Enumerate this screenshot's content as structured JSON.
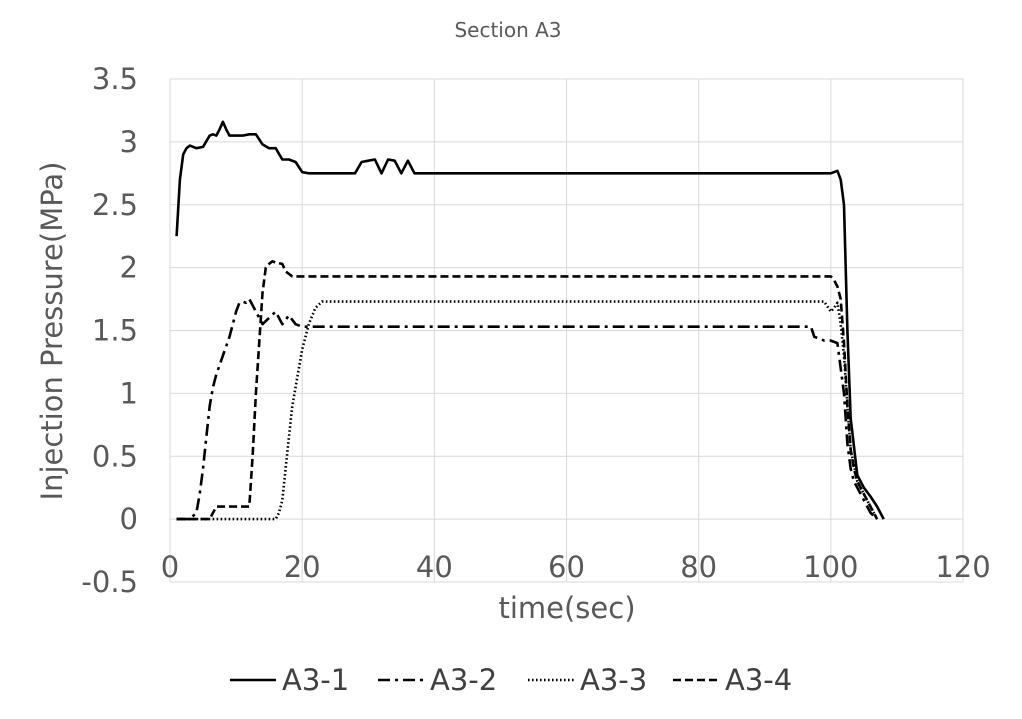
{
  "chart_data": {
    "type": "line",
    "title": "Section A3",
    "xlabel": "time(sec)",
    "ylabel": "Injection Pressure(MPa)",
    "xlim": [
      0,
      120
    ],
    "ylim": [
      -0.5,
      3.5
    ],
    "xticks": [
      0,
      20,
      40,
      60,
      80,
      100,
      120
    ],
    "yticks": [
      -0.5,
      0,
      0.5,
      1,
      1.5,
      2,
      2.5,
      3,
      3.5
    ],
    "xtick_labels": [
      "0",
      "20",
      "40",
      "60",
      "80",
      "100",
      "120"
    ],
    "ytick_labels": [
      "-0.5",
      "0",
      "0.5",
      "1",
      "1.5",
      "2",
      "2.5",
      "3",
      "3.5"
    ],
    "grid": true,
    "legend_position": "bottom",
    "series": [
      {
        "name": "A3-1",
        "line_style": "solid",
        "x": [
          1,
          1.5,
          2,
          2.5,
          3,
          4,
          5,
          6,
          6.5,
          7,
          7.5,
          8,
          8.5,
          9,
          10,
          11,
          12,
          13,
          14,
          15,
          16,
          17,
          18,
          19,
          20,
          21,
          22,
          25,
          28,
          29,
          30,
          31,
          32,
          33,
          34,
          35,
          36,
          37,
          40,
          60,
          80,
          100,
          101,
          101.5,
          102,
          102.5,
          103,
          104,
          105,
          106,
          107,
          108
        ],
        "values": [
          2.25,
          2.7,
          2.9,
          2.95,
          2.97,
          2.95,
          2.96,
          3.05,
          3.06,
          3.05,
          3.1,
          3.16,
          3.1,
          3.05,
          3.05,
          3.05,
          3.06,
          3.06,
          2.98,
          2.95,
          2.95,
          2.86,
          2.86,
          2.84,
          2.76,
          2.75,
          2.75,
          2.75,
          2.75,
          2.84,
          2.85,
          2.86,
          2.75,
          2.86,
          2.85,
          2.75,
          2.85,
          2.75,
          2.75,
          2.75,
          2.75,
          2.75,
          2.77,
          2.7,
          2.5,
          1.5,
          0.8,
          0.35,
          0.25,
          0.18,
          0.1,
          0.0
        ]
      },
      {
        "name": "A3-2",
        "line_style": "dash-dot",
        "x": [
          1,
          3,
          4,
          4.5,
          5,
          5.5,
          6,
          6.5,
          7,
          8,
          9,
          10,
          10.5,
          11,
          11.5,
          12,
          12.5,
          13,
          14,
          15,
          16,
          17,
          18,
          19,
          20,
          22,
          40,
          60,
          80,
          97,
          97.5,
          98,
          99,
          100,
          101,
          102,
          102.5,
          103,
          103.5,
          104,
          105,
          106,
          107
        ],
        "values": [
          0,
          0,
          0.05,
          0.2,
          0.4,
          0.65,
          0.9,
          1.05,
          1.15,
          1.3,
          1.45,
          1.65,
          1.72,
          1.73,
          1.72,
          1.75,
          1.7,
          1.65,
          1.55,
          1.6,
          1.65,
          1.55,
          1.62,
          1.55,
          1.53,
          1.53,
          1.53,
          1.53,
          1.53,
          1.53,
          1.45,
          1.44,
          1.42,
          1.42,
          1.4,
          1.0,
          0.6,
          0.4,
          0.3,
          0.25,
          0.15,
          0.05,
          0.0
        ]
      },
      {
        "name": "A3-3",
        "line_style": "dotted",
        "x": [
          1,
          10,
          14,
          16,
          16.5,
          17,
          17.5,
          18,
          18.5,
          19,
          19.5,
          20,
          21,
          22,
          23,
          25,
          40,
          60,
          80,
          99,
          100,
          100.5,
          101,
          101.5,
          102,
          102.5,
          103,
          104,
          105,
          106,
          107
        ],
        "values": [
          0,
          0,
          0,
          0,
          0.05,
          0.15,
          0.4,
          0.65,
          0.9,
          1.05,
          1.2,
          1.35,
          1.55,
          1.68,
          1.73,
          1.73,
          1.73,
          1.73,
          1.73,
          1.73,
          1.65,
          1.68,
          1.72,
          1.55,
          1.3,
          0.9,
          0.55,
          0.3,
          0.2,
          0.1,
          0.0
        ]
      },
      {
        "name": "A3-4",
        "line_style": "dashed",
        "x": [
          1,
          5,
          6,
          6.5,
          7,
          8,
          10,
          11,
          12,
          12.5,
          13,
          13.5,
          14,
          14.5,
          15,
          15.5,
          16,
          17,
          17.5,
          18,
          18.5,
          19,
          20,
          40,
          60,
          80,
          100,
          100.5,
          101,
          101.5,
          102,
          102.5,
          103,
          103.5,
          104,
          105,
          106,
          107
        ],
        "values": [
          0,
          0,
          0,
          0.05,
          0.1,
          0.1,
          0.1,
          0.1,
          0.1,
          0.5,
          1.0,
          1.4,
          1.8,
          2.0,
          2.03,
          2.05,
          2.04,
          2.03,
          1.97,
          1.95,
          1.93,
          1.93,
          1.93,
          1.93,
          1.93,
          1.93,
          1.93,
          1.9,
          1.85,
          1.75,
          1.4,
          0.9,
          0.55,
          0.4,
          0.3,
          0.2,
          0.1,
          0.0
        ]
      }
    ]
  }
}
